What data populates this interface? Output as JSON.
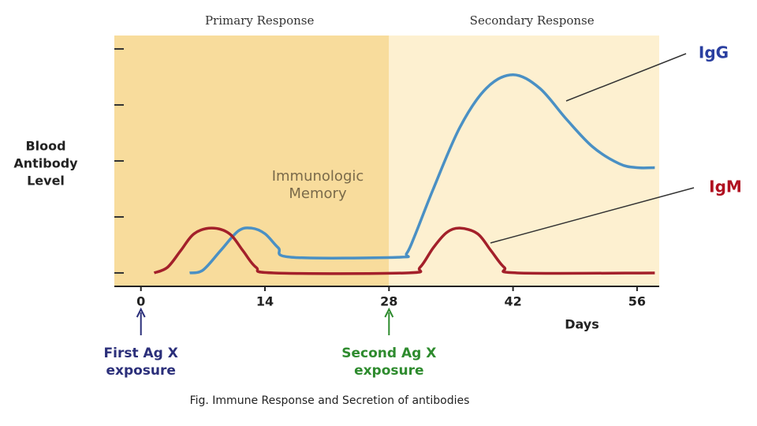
{
  "chart_data": {
    "type": "line",
    "caption": "Fig. Immune Response and Secretion of antibodies",
    "ylabel": [
      "Blood",
      "Antibody",
      "Level"
    ],
    "xlabel": "Days",
    "xlim": [
      -3,
      58.5
    ],
    "xticks": [
      0,
      14,
      28,
      42,
      56
    ],
    "ylim": [
      -0.24,
      4.24
    ],
    "yticks": [
      0,
      1,
      2,
      3,
      4
    ],
    "regions": [
      {
        "label": "Primary Response",
        "start": -3,
        "end": 28,
        "color": "#f8dc9c"
      },
      {
        "label": "Secondary Response",
        "start": 28,
        "end": 58.5,
        "color": "#fdf0d0"
      }
    ],
    "memory_label": [
      "Immunologic",
      "Memory"
    ],
    "annotations": [
      {
        "text": [
          "First Ag X",
          "exposure"
        ],
        "x": 0,
        "color": "#2b2f7a"
      },
      {
        "text": [
          "Second Ag X",
          "exposure"
        ],
        "x": 28,
        "color": "#2e8b2e"
      }
    ],
    "series": [
      {
        "name": "IgG",
        "color": "#4a90c4",
        "x": [
          5.5,
          7,
          9,
          11,
          12.5,
          14,
          15.5,
          17,
          29,
          30,
          31,
          33,
          36,
          39,
          42,
          45,
          48,
          51,
          54,
          56,
          58
        ],
        "values": [
          0,
          0.05,
          0.4,
          0.75,
          0.8,
          0.7,
          0.45,
          0.28,
          0.28,
          0.35,
          0.7,
          1.5,
          2.6,
          3.3,
          3.54,
          3.3,
          2.75,
          2.25,
          1.95,
          1.88,
          1.88
        ]
      },
      {
        "name": "IgM",
        "color": "#a3202a",
        "x": [
          1.5,
          3,
          4.5,
          6,
          8,
          10,
          11.5,
          13,
          15,
          30,
          31.5,
          33,
          34.5,
          36,
          38,
          39.5,
          41,
          42.5,
          58
        ],
        "values": [
          0,
          0.1,
          0.4,
          0.7,
          0.8,
          0.7,
          0.4,
          0.1,
          0,
          0,
          0.1,
          0.45,
          0.72,
          0.8,
          0.7,
          0.4,
          0.1,
          0,
          0
        ]
      }
    ]
  }
}
